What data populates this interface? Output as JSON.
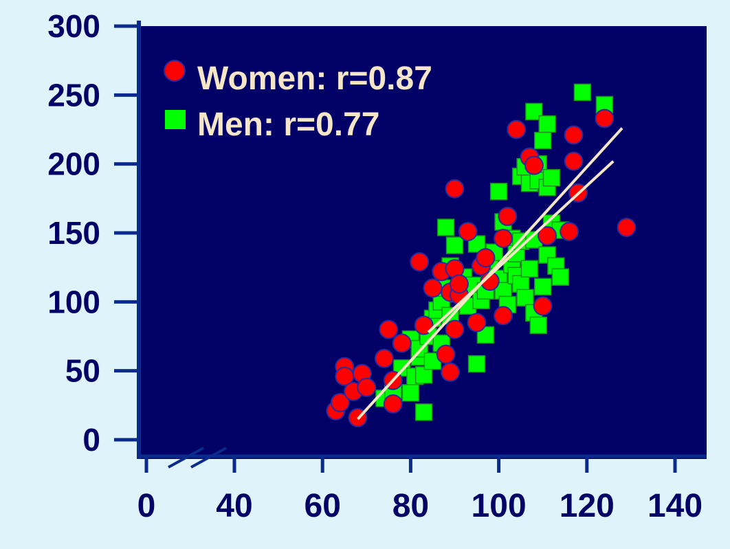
{
  "colors": {
    "page_background": "#dff3fb",
    "plot_background": "#000066",
    "axis": "#0a2a8c",
    "tick_label": "#000066",
    "women": "#ff0000",
    "women_edge": "#2a2aa0",
    "men": "#00ff00",
    "fit_line": "#f5e6c8",
    "legend_text": "#f5e6c8"
  },
  "chart_data": {
    "type": "scatter",
    "title": "",
    "xlabel": "",
    "ylabel": "",
    "xlim": [
      0,
      140
    ],
    "ylim": [
      0,
      300
    ],
    "axis_break": "x axis broken between 0 and 40",
    "x_ticks": [
      0,
      40,
      60,
      80,
      100,
      120,
      140
    ],
    "y_ticks": [
      0,
      50,
      100,
      150,
      200,
      250,
      300
    ],
    "legend_position": "top-left",
    "series": [
      {
        "name": "Women: r=0.87",
        "marker": "circle",
        "color": "#ff0000",
        "points": [
          [
            63,
            21
          ],
          [
            64,
            27
          ],
          [
            65,
            53
          ],
          [
            65,
            46
          ],
          [
            67,
            35
          ],
          [
            68,
            16
          ],
          [
            69,
            48
          ],
          [
            70,
            38
          ],
          [
            74,
            59
          ],
          [
            75,
            80
          ],
          [
            76,
            43
          ],
          [
            76,
            26
          ],
          [
            78,
            70
          ],
          [
            82,
            129
          ],
          [
            83,
            83
          ],
          [
            85,
            110
          ],
          [
            87,
            122
          ],
          [
            88,
            62
          ],
          [
            89,
            49
          ],
          [
            89,
            107
          ],
          [
            90,
            124
          ],
          [
            90,
            80
          ],
          [
            91,
            105
          ],
          [
            91,
            113
          ],
          [
            93,
            151
          ],
          [
            95,
            85
          ],
          [
            96,
            126
          ],
          [
            97,
            132
          ],
          [
            98,
            115
          ],
          [
            101,
            146
          ],
          [
            101,
            90
          ],
          [
            102,
            162
          ],
          [
            90,
            182
          ],
          [
            104,
            225
          ],
          [
            107,
            205
          ],
          [
            108,
            199
          ],
          [
            110,
            97
          ],
          [
            111,
            148
          ],
          [
            116,
            151
          ],
          [
            117,
            202
          ],
          [
            117,
            221
          ],
          [
            118,
            179
          ],
          [
            124,
            233
          ],
          [
            129,
            154
          ]
        ]
      },
      {
        "name": "Men: r=0.77",
        "marker": "square",
        "color": "#00ff00",
        "points": [
          [
            74,
            30
          ],
          [
            76,
            36
          ],
          [
            78,
            52
          ],
          [
            80,
            73
          ],
          [
            80,
            34
          ],
          [
            81,
            46
          ],
          [
            82,
            60
          ],
          [
            82,
            66
          ],
          [
            83,
            20
          ],
          [
            83,
            47
          ],
          [
            84,
            75
          ],
          [
            85,
            88
          ],
          [
            85,
            57
          ],
          [
            86,
            94
          ],
          [
            87,
            100
          ],
          [
            87,
            70
          ],
          [
            88,
            110
          ],
          [
            88,
            154
          ],
          [
            89,
            90
          ],
          [
            89,
            126
          ],
          [
            90,
            141
          ],
          [
            91,
            106
          ],
          [
            92,
            118
          ],
          [
            93,
            97
          ],
          [
            94,
            112
          ],
          [
            95,
            55
          ],
          [
            95,
            142
          ],
          [
            96,
            101
          ],
          [
            97,
            108
          ],
          [
            97,
            76
          ],
          [
            98,
            120
          ],
          [
            98,
            130
          ],
          [
            99,
            136
          ],
          [
            100,
            117
          ],
          [
            100,
            180
          ],
          [
            101,
            108
          ],
          [
            101,
            158
          ],
          [
            102,
            98
          ],
          [
            103,
            127
          ],
          [
            103,
            146
          ],
          [
            104,
            119
          ],
          [
            104,
            135
          ],
          [
            105,
            113
          ],
          [
            105,
            191
          ],
          [
            105,
            144
          ],
          [
            106,
            103
          ],
          [
            106,
            198
          ],
          [
            107,
            186
          ],
          [
            107,
            124
          ],
          [
            108,
            145
          ],
          [
            108,
            92
          ],
          [
            108,
            238
          ],
          [
            109,
            200
          ],
          [
            109,
            83
          ],
          [
            109,
            188
          ],
          [
            110,
            111
          ],
          [
            110,
            217
          ],
          [
            111,
            229
          ],
          [
            111,
            134
          ],
          [
            111,
            183
          ],
          [
            112,
            157
          ],
          [
            112,
            190
          ],
          [
            113,
            126
          ],
          [
            114,
            118
          ],
          [
            114,
            152
          ],
          [
            119,
            252
          ],
          [
            124,
            243
          ]
        ]
      }
    ],
    "fit_lines": [
      {
        "series": "Women: r=0.87",
        "x": [
          68,
          128
        ],
        "y": [
          15,
          226
        ]
      },
      {
        "series": "Men: r=0.77",
        "x": [
          84,
          126
        ],
        "y": [
          78,
          202
        ]
      }
    ]
  }
}
